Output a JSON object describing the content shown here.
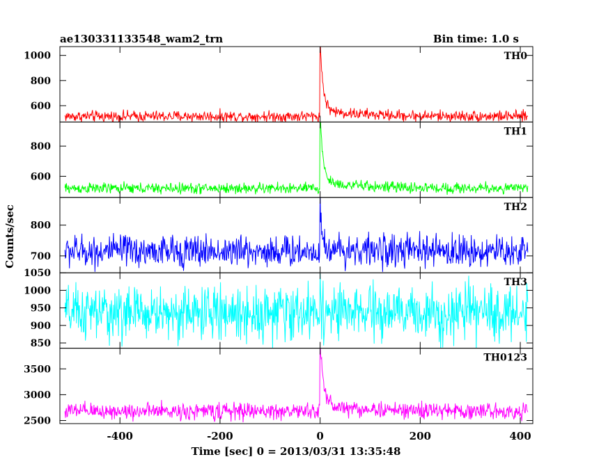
{
  "header": {
    "title": "ae130331133548_wam2_trn",
    "bin_time": "Bin time: 1.0 s"
  },
  "chart_data": {
    "type": "line",
    "xlabel": "Time [sec] 0 = 2013/03/31 13:35:48",
    "ylabel": "Counts/sec",
    "xlim": [
      -520,
      425
    ],
    "xticks": [
      -400,
      -200,
      0,
      200,
      400
    ],
    "bin_time_s": 1.0,
    "x_data_range": [
      -510,
      415
    ],
    "panels": [
      {
        "name": "TH0",
        "color": "#ff0000",
        "ylim": [
          470,
          1070
        ],
        "yticks": [
          600,
          800,
          1000
        ],
        "baseline": 515,
        "noise": 55,
        "peak": 1070,
        "decay": 6,
        "tail": 50
      },
      {
        "name": "TH1",
        "color": "#00ff00",
        "ylim": [
          460,
          960
        ],
        "yticks": [
          600,
          800
        ],
        "baseline": 520,
        "noise": 45,
        "peak": 960,
        "decay": 6,
        "tail": 45
      },
      {
        "name": "TH2",
        "color": "#0000ff",
        "ylim": [
          645,
          890
        ],
        "yticks": [
          700,
          800
        ],
        "baseline": 715,
        "noise": 65,
        "peak": 890,
        "decay": 3,
        "tail": 10
      },
      {
        "name": "TH3",
        "color": "#00ffff",
        "ylim": [
          835,
          1050
        ],
        "yticks": [
          850,
          900,
          950,
          1000,
          1050
        ],
        "baseline": 935,
        "noise": 95,
        "peak": 1050,
        "decay": 2,
        "tail": 0
      },
      {
        "name": "TH0123",
        "color": "#ff00ff",
        "ylim": [
          2440,
          3900
        ],
        "yticks": [
          2500,
          3000,
          3500
        ],
        "baseline": 2680,
        "noise": 200,
        "peak": 3900,
        "decay": 7,
        "tail": 120
      }
    ]
  }
}
